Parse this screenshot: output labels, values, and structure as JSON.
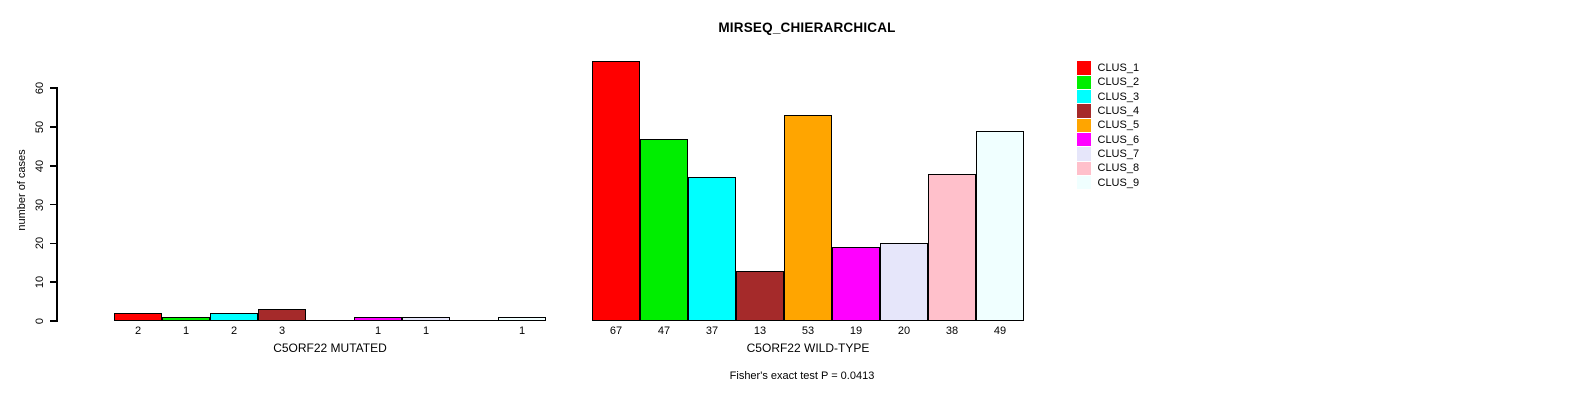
{
  "chart_data": {
    "type": "bar",
    "title": "MIRSEQ_CHIERARCHICAL",
    "ylabel": "number of cases",
    "xlabel": "",
    "yticks": [
      0,
      10,
      20,
      30,
      40,
      50,
      60
    ],
    "ylim": [
      0,
      68
    ],
    "grid": false,
    "legend_position": "right",
    "legend": [
      "CLUS_1",
      "CLUS_2",
      "CLUS_3",
      "CLUS_4",
      "CLUS_5",
      "CLUS_6",
      "CLUS_7",
      "CLUS_8",
      "CLUS_9"
    ],
    "colors": [
      "#FF0000",
      "#00EE00",
      "#00FFFF",
      "#A52A2A",
      "#FFA500",
      "#FF00FF",
      "#E6E6FA",
      "#FFC0CB",
      "#F0FFFF"
    ],
    "groups": [
      {
        "label": "C5ORF22 MUTATED",
        "values": [
          2,
          1,
          2,
          3,
          0,
          1,
          1,
          0,
          1
        ]
      },
      {
        "label": "C5ORF22 WILD-TYPE",
        "values": [
          67,
          47,
          37,
          13,
          53,
          19,
          20,
          38,
          49
        ]
      }
    ],
    "annotation": "Fisher's exact test P = 0.0413"
  }
}
